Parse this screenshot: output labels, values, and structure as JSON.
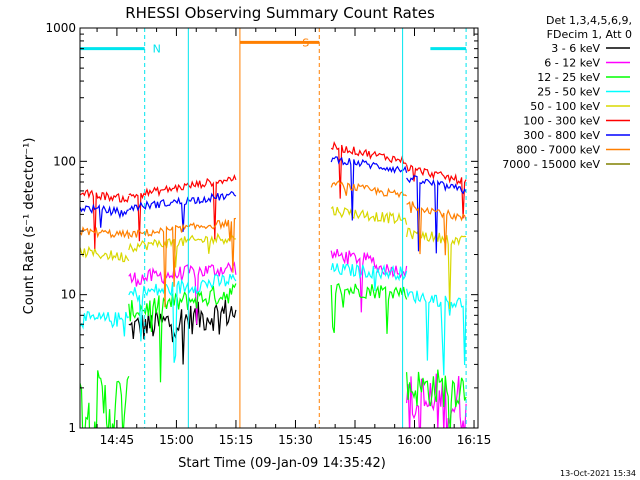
{
  "chart_data": {
    "type": "line",
    "title": "RHESSI Observing Summary Count Rates",
    "xlabel": "Start Time (09-Jan-09 14:35:42)",
    "ylabel": "Count Rate (s⁻¹ detector⁻¹)",
    "yscale": "log",
    "ylim": [
      1,
      1000
    ],
    "xlim": [
      "14:35:42",
      "16:16"
    ],
    "y_ticks": [
      "1",
      "10",
      "100",
      "1000"
    ],
    "x_ticks": [
      "14:45",
      "15:00",
      "15:15",
      "15:30",
      "15:45",
      "16:00",
      "16:15"
    ],
    "legend": {
      "header": [
        "Det 1,3,4,5,6,9,",
        "FDecim 1, Att 0"
      ],
      "placement": "right"
    },
    "footer_timestamp": "13-Oct-2021 15:34",
    "markers": [
      {
        "label": "N",
        "color": "#00e5ee",
        "segments": [
          [
            "14:35:42",
            "14:52"
          ],
          [
            "16:04",
            "16:13"
          ]
        ],
        "level": 700,
        "edges": [
          [
            "14:52",
            "dashed"
          ],
          [
            "15:57",
            "solid"
          ],
          [
            "16:13",
            "dashed"
          ]
        ]
      },
      {
        "label": "S",
        "color": "#ff7f00",
        "segments": [
          [
            "15:16",
            "15:36"
          ]
        ],
        "level": 780,
        "edges": [
          [
            "15:16",
            "solid"
          ],
          [
            "15:36",
            "dashed"
          ]
        ]
      }
    ],
    "extra_lines": [
      {
        "time": "15:03",
        "color": "#00e5ee",
        "style": "solid"
      }
    ],
    "series": [
      {
        "name": "3 - 6 keV",
        "color": "#000000",
        "segments": [
          {
            "t0": "14:48",
            "t1": "15:15",
            "y0": 5.5,
            "y1": 7.5,
            "noise": 0.12
          }
        ]
      },
      {
        "name": "6 - 12 keV",
        "color": "#ff00ff",
        "segments": [
          {
            "t0": "14:48",
            "t1": "15:15",
            "y0": 13,
            "y1": 16,
            "noise": 0.06
          },
          {
            "t0": "15:39",
            "t1": "15:50",
            "y0": 20,
            "y1": 18,
            "noise": 0.05
          },
          {
            "t0": "15:50",
            "t1": "15:58",
            "y0": 16,
            "y1": 15,
            "noise": 0.05
          },
          {
            "t0": "15:58",
            "t1": "16:13",
            "y0": 1.5,
            "y1": 1.5,
            "noise": 0.25
          }
        ]
      },
      {
        "name": "12 - 25 keV",
        "color": "#00ff00",
        "segments": [
          {
            "t0": "14:35:42",
            "t1": "14:48",
            "y0": 1.4,
            "y1": 1.4,
            "noise": 0.3
          },
          {
            "t0": "14:48",
            "t1": "15:15",
            "y0": 7.5,
            "y1": 10.5,
            "noise": 0.08
          },
          {
            "t0": "15:39",
            "t1": "15:58",
            "y0": 11,
            "y1": 10.5,
            "noise": 0.06
          },
          {
            "t0": "15:58",
            "t1": "16:13",
            "y0": 2,
            "y1": 2,
            "noise": 0.15
          }
        ]
      },
      {
        "name": "25 - 50 keV",
        "color": "#00ffff",
        "segments": [
          {
            "t0": "14:35:42",
            "t1": "14:48",
            "y0": 6.5,
            "y1": 6.5,
            "noise": 0.06
          },
          {
            "t0": "14:48",
            "t1": "15:15",
            "y0": 10,
            "y1": 13,
            "noise": 0.06
          },
          {
            "t0": "15:39",
            "t1": "15:58",
            "y0": 15.5,
            "y1": 14.5,
            "noise": 0.05
          },
          {
            "t0": "15:58",
            "t1": "16:13",
            "y0": 10,
            "y1": 8.5,
            "noise": 0.05
          }
        ]
      },
      {
        "name": "50 - 100 keV",
        "color": "#d8d800",
        "segments": [
          {
            "t0": "14:35:42",
            "t1": "14:48",
            "y0": 21,
            "y1": 19,
            "noise": 0.04
          },
          {
            "t0": "14:48",
            "t1": "15:15",
            "y0": 23,
            "y1": 27,
            "noise": 0.04
          },
          {
            "t0": "15:39",
            "t1": "15:58",
            "y0": 43,
            "y1": 36,
            "noise": 0.04
          },
          {
            "t0": "15:58",
            "t1": "16:13",
            "y0": 29,
            "y1": 25,
            "noise": 0.04
          }
        ]
      },
      {
        "name": "100 - 300 keV",
        "color": "#ff0000",
        "segments": [
          {
            "t0": "14:35:42",
            "t1": "14:48",
            "y0": 58,
            "y1": 52,
            "noise": 0.03
          },
          {
            "t0": "14:48",
            "t1": "15:15",
            "y0": 55,
            "y1": 75,
            "noise": 0.03
          },
          {
            "t0": "15:39",
            "t1": "15:58",
            "y0": 130,
            "y1": 100,
            "noise": 0.03
          },
          {
            "t0": "15:58",
            "t1": "16:13",
            "y0": 90,
            "y1": 70,
            "noise": 0.03
          }
        ]
      },
      {
        "name": "300 - 800 keV",
        "color": "#0000ff",
        "segments": [
          {
            "t0": "14:35:42",
            "t1": "14:48",
            "y0": 45,
            "y1": 41,
            "noise": 0.03
          },
          {
            "t0": "14:48",
            "t1": "15:15",
            "y0": 45,
            "y1": 56,
            "noise": 0.03
          },
          {
            "t0": "15:39",
            "t1": "15:58",
            "y0": 105,
            "y1": 85,
            "noise": 0.03
          },
          {
            "t0": "15:58",
            "t1": "16:13",
            "y0": 75,
            "y1": 60,
            "noise": 0.03
          }
        ]
      },
      {
        "name": "800 - 7000 keV",
        "color": "#ff7f00",
        "segments": [
          {
            "t0": "14:35:42",
            "t1": "14:48",
            "y0": 30,
            "y1": 28,
            "noise": 0.03
          },
          {
            "t0": "14:48",
            "t1": "15:15",
            "y0": 28,
            "y1": 35,
            "noise": 0.03
          },
          {
            "t0": "15:39",
            "t1": "15:58",
            "y0": 68,
            "y1": 55,
            "noise": 0.03
          },
          {
            "t0": "15:58",
            "t1": "16:13",
            "y0": 48,
            "y1": 37,
            "noise": 0.03
          }
        ]
      },
      {
        "name": "7000 - 15000 keV",
        "color": "#808000",
        "segments": []
      }
    ]
  }
}
